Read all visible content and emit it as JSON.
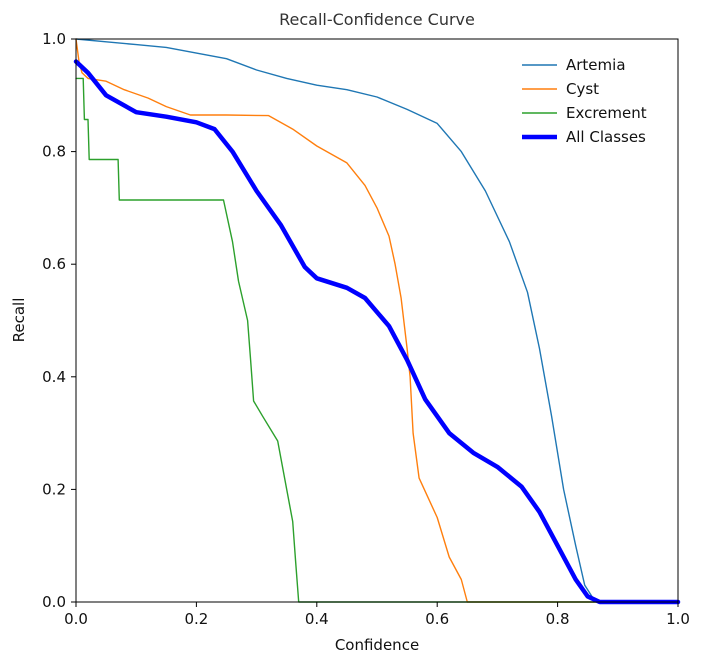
{
  "chart_data": {
    "type": "line",
    "title": "Recall-Confidence Curve",
    "xlabel": "Confidence",
    "ylabel": "Recall",
    "xlim": [
      0.0,
      1.0
    ],
    "ylim": [
      0.0,
      1.0
    ],
    "grid": false,
    "legend_position": "top-right",
    "x_ticks": [
      "0.0",
      "0.2",
      "0.4",
      "0.6",
      "0.8",
      "1.0"
    ],
    "y_ticks": [
      "0.0",
      "0.2",
      "0.4",
      "0.6",
      "0.8",
      "1.0"
    ],
    "series": [
      {
        "name": "Artemia",
        "color": "#1f77b4",
        "emphasis": "normal",
        "points": [
          [
            0.0,
            1.0
          ],
          [
            0.05,
            0.995
          ],
          [
            0.1,
            0.99
          ],
          [
            0.15,
            0.985
          ],
          [
            0.2,
            0.975
          ],
          [
            0.25,
            0.965
          ],
          [
            0.3,
            0.945
          ],
          [
            0.35,
            0.93
          ],
          [
            0.4,
            0.918
          ],
          [
            0.45,
            0.91
          ],
          [
            0.5,
            0.897
          ],
          [
            0.55,
            0.875
          ],
          [
            0.6,
            0.85
          ],
          [
            0.64,
            0.8
          ],
          [
            0.68,
            0.73
          ],
          [
            0.72,
            0.64
          ],
          [
            0.75,
            0.55
          ],
          [
            0.77,
            0.45
          ],
          [
            0.79,
            0.33
          ],
          [
            0.81,
            0.2
          ],
          [
            0.83,
            0.1
          ],
          [
            0.845,
            0.03
          ],
          [
            0.86,
            0.005
          ],
          [
            0.88,
            0.0
          ],
          [
            1.0,
            0.0
          ]
        ]
      },
      {
        "name": "Cyst",
        "color": "#ff7f0e",
        "emphasis": "normal",
        "points": [
          [
            0.0,
            1.0
          ],
          [
            0.005,
            0.96
          ],
          [
            0.01,
            0.94
          ],
          [
            0.02,
            0.93
          ],
          [
            0.05,
            0.925
          ],
          [
            0.08,
            0.91
          ],
          [
            0.12,
            0.895
          ],
          [
            0.15,
            0.88
          ],
          [
            0.19,
            0.865
          ],
          [
            0.25,
            0.865
          ],
          [
            0.32,
            0.864
          ],
          [
            0.36,
            0.84
          ],
          [
            0.4,
            0.81
          ],
          [
            0.45,
            0.78
          ],
          [
            0.48,
            0.74
          ],
          [
            0.5,
            0.7
          ],
          [
            0.52,
            0.65
          ],
          [
            0.53,
            0.6
          ],
          [
            0.54,
            0.54
          ],
          [
            0.55,
            0.45
          ],
          [
            0.555,
            0.4
          ],
          [
            0.56,
            0.3
          ],
          [
            0.57,
            0.22
          ],
          [
            0.6,
            0.15
          ],
          [
            0.62,
            0.08
          ],
          [
            0.64,
            0.04
          ],
          [
            0.65,
            0.0
          ],
          [
            1.0,
            0.0
          ]
        ]
      },
      {
        "name": "Excrement",
        "color": "#2ca02c",
        "emphasis": "normal",
        "points": [
          [
            0.0,
            0.93
          ],
          [
            0.012,
            0.93
          ],
          [
            0.014,
            0.857
          ],
          [
            0.02,
            0.857
          ],
          [
            0.022,
            0.786
          ],
          [
            0.07,
            0.786
          ],
          [
            0.072,
            0.714
          ],
          [
            0.245,
            0.714
          ],
          [
            0.26,
            0.64
          ],
          [
            0.27,
            0.57
          ],
          [
            0.285,
            0.5
          ],
          [
            0.29,
            0.43
          ],
          [
            0.295,
            0.357
          ],
          [
            0.31,
            0.33
          ],
          [
            0.335,
            0.286
          ],
          [
            0.35,
            0.2
          ],
          [
            0.36,
            0.143
          ],
          [
            0.365,
            0.07
          ],
          [
            0.37,
            0.0
          ],
          [
            1.0,
            0.0
          ]
        ]
      },
      {
        "name": "All Classes",
        "color": "#0000ff",
        "emphasis": "bold",
        "points": [
          [
            0.0,
            0.96
          ],
          [
            0.02,
            0.94
          ],
          [
            0.05,
            0.9
          ],
          [
            0.1,
            0.87
          ],
          [
            0.15,
            0.862
          ],
          [
            0.2,
            0.852
          ],
          [
            0.23,
            0.84
          ],
          [
            0.26,
            0.8
          ],
          [
            0.3,
            0.73
          ],
          [
            0.34,
            0.67
          ],
          [
            0.38,
            0.595
          ],
          [
            0.4,
            0.575
          ],
          [
            0.45,
            0.558
          ],
          [
            0.48,
            0.54
          ],
          [
            0.52,
            0.49
          ],
          [
            0.55,
            0.43
          ],
          [
            0.58,
            0.36
          ],
          [
            0.62,
            0.3
          ],
          [
            0.66,
            0.265
          ],
          [
            0.7,
            0.24
          ],
          [
            0.74,
            0.205
          ],
          [
            0.77,
            0.16
          ],
          [
            0.8,
            0.1
          ],
          [
            0.83,
            0.04
          ],
          [
            0.85,
            0.01
          ],
          [
            0.87,
            0.0
          ],
          [
            1.0,
            0.0
          ]
        ]
      }
    ]
  }
}
